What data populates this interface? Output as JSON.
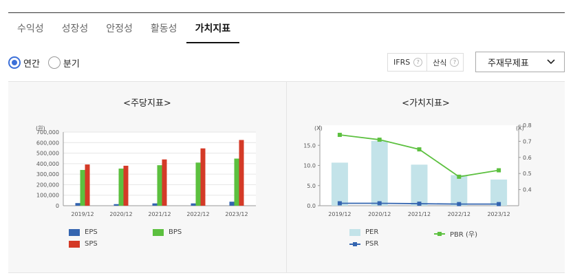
{
  "tabs": [
    {
      "label": "수익성",
      "active": false
    },
    {
      "label": "성장성",
      "active": false
    },
    {
      "label": "안정성",
      "active": false
    },
    {
      "label": "활동성",
      "active": false
    },
    {
      "label": "가치지표",
      "active": true
    }
  ],
  "period": {
    "options": [
      {
        "label": "연간",
        "checked": true
      },
      {
        "label": "분기",
        "checked": false
      }
    ]
  },
  "toolbar": {
    "ifrs_label": "IFRS",
    "formula_label": "산식",
    "help_glyph": "?",
    "select_value": "주재무제표"
  },
  "colors": {
    "eps": "#3465b0",
    "bps": "#5cc03f",
    "sps": "#d43a27",
    "per": "#c3e3e9",
    "pbr": "#5cc03f",
    "psr": "#3465b0",
    "accent": "#3b6fd8"
  },
  "chart_data": [
    {
      "type": "bar",
      "title": "<주당지표>",
      "ylabel": "(원)",
      "ylim": [
        0,
        700000
      ],
      "yticks": [
        "0",
        "100,000",
        "200,000",
        "300,000",
        "400,000",
        "500,000",
        "600,000",
        "700,000"
      ],
      "ytick_values": [
        0,
        100000,
        200000,
        300000,
        400000,
        500000,
        600000,
        700000
      ],
      "categories": [
        "2019/12",
        "2020/12",
        "2021/12",
        "2022/12",
        "2023/12"
      ],
      "series": [
        {
          "name": "EPS",
          "values": [
            25000,
            15000,
            22000,
            22000,
            38000
          ]
        },
        {
          "name": "BPS",
          "values": [
            340000,
            353000,
            385000,
            410000,
            448000
          ]
        },
        {
          "name": "SPS",
          "values": [
            392000,
            380000,
            440000,
            545000,
            625000
          ]
        }
      ],
      "legend": "bottom",
      "grid": true
    },
    {
      "type": "bar+line",
      "title": "<가치지표>",
      "y_left_label": "(X)",
      "y_right_label": "(X)",
      "y_left_lim": [
        0,
        20
      ],
      "y_left_ticks": [
        "0.0",
        "5.0",
        "10.0",
        "15.0"
      ],
      "y_left_tick_values": [
        0,
        5,
        10,
        15
      ],
      "y_right_lim": [
        0.3,
        0.8
      ],
      "y_right_ticks": [
        "0.4",
        "0.5",
        "0.6",
        "0.7",
        "0.8"
      ],
      "y_right_tick_values": [
        0.4,
        0.5,
        0.6,
        0.7,
        0.8
      ],
      "categories": [
        "2019/12",
        "2020/12",
        "2021/12",
        "2022/12",
        "2023/12"
      ],
      "series": [
        {
          "name": "PER",
          "kind": "bar",
          "axis": "left",
          "values": [
            10.7,
            16.1,
            10.2,
            7.6,
            6.5
          ]
        },
        {
          "name": "PBR (우)",
          "kind": "line",
          "axis": "right",
          "values": [
            0.74,
            0.71,
            0.65,
            0.48,
            0.52
          ]
        },
        {
          "name": "PSR",
          "kind": "line",
          "axis": "left",
          "values": [
            0.6,
            0.6,
            0.5,
            0.4,
            0.4
          ]
        }
      ],
      "legend": "bottom",
      "grid": false
    }
  ]
}
